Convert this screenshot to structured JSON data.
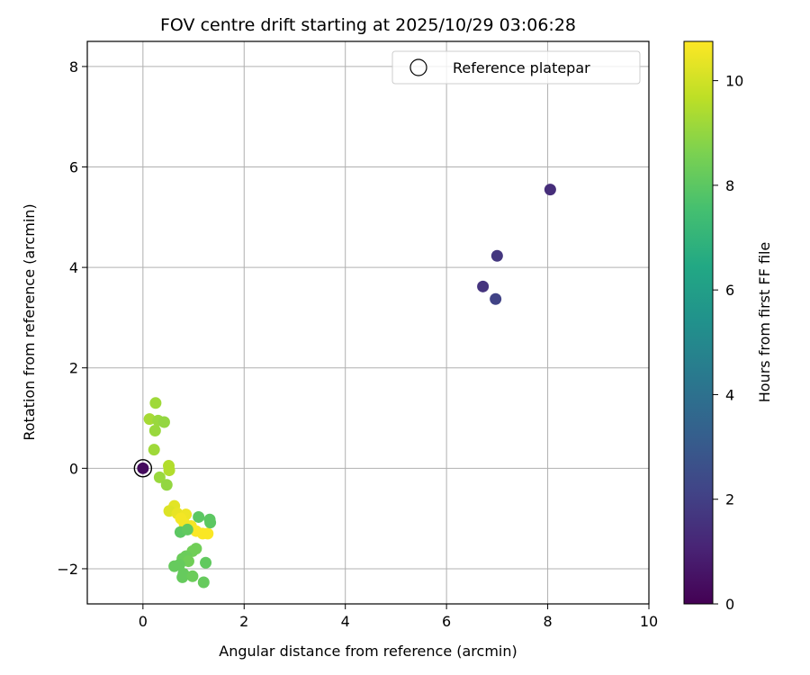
{
  "chart_data": {
    "type": "scatter",
    "title": "FOV centre drift starting at 2025/10/29 03:06:28",
    "xlabel": "Angular distance from reference (arcmin)",
    "ylabel": "Rotation from reference (arcmin)",
    "xlim": [
      -1.1,
      10
    ],
    "ylim": [
      -2.7,
      8.5
    ],
    "xticks": [
      0,
      2,
      4,
      6,
      8,
      10
    ],
    "yticks": [
      -2,
      0,
      2,
      4,
      6,
      8
    ],
    "xtick_labels": [
      "0",
      "2",
      "4",
      "6",
      "8",
      "10"
    ],
    "ytick_labels": [
      "−2",
      "0",
      "2",
      "4",
      "6",
      "8"
    ],
    "grid": true,
    "colorbar": {
      "label": "Hours from first FF file",
      "colormap": "viridis",
      "range": [
        0,
        10.75
      ],
      "ticks": [
        0,
        2,
        4,
        6,
        8,
        10
      ],
      "tick_labels": [
        "0",
        "2",
        "4",
        "6",
        "8",
        "10"
      ]
    },
    "legend": {
      "label": "Reference platepar",
      "placement": "top-right"
    },
    "reference_point": {
      "x": 0,
      "y": 0
    },
    "points": [
      {
        "x": 0.0,
        "y": 0.0,
        "c": 0.3
      },
      {
        "x": 8.05,
        "y": 5.55,
        "c": 1.4
      },
      {
        "x": 7.0,
        "y": 4.23,
        "c": 1.7
      },
      {
        "x": 6.72,
        "y": 3.62,
        "c": 1.6
      },
      {
        "x": 6.97,
        "y": 3.37,
        "c": 2.1
      },
      {
        "x": 0.25,
        "y": 1.3,
        "c": 9.2
      },
      {
        "x": 0.13,
        "y": 0.98,
        "c": 9.3
      },
      {
        "x": 0.3,
        "y": 0.95,
        "c": 9.1
      },
      {
        "x": 0.42,
        "y": 0.92,
        "c": 9.0
      },
      {
        "x": 0.24,
        "y": 0.75,
        "c": 9.1
      },
      {
        "x": 0.22,
        "y": 0.37,
        "c": 9.2
      },
      {
        "x": 0.51,
        "y": 0.05,
        "c": 9.5
      },
      {
        "x": 0.52,
        "y": -0.04,
        "c": 9.5
      },
      {
        "x": 0.33,
        "y": -0.18,
        "c": 9.1
      },
      {
        "x": 0.47,
        "y": -0.33,
        "c": 9.0
      },
      {
        "x": 0.62,
        "y": -0.75,
        "c": 10.3
      },
      {
        "x": 0.52,
        "y": -0.85,
        "c": 10.2
      },
      {
        "x": 0.68,
        "y": -0.9,
        "c": 10.4
      },
      {
        "x": 0.85,
        "y": -0.92,
        "c": 10.5
      },
      {
        "x": 0.75,
        "y": -1.0,
        "c": 10.6
      },
      {
        "x": 0.82,
        "y": -1.1,
        "c": 10.6
      },
      {
        "x": 0.95,
        "y": -1.15,
        "c": 10.6
      },
      {
        "x": 1.05,
        "y": -1.25,
        "c": 10.7
      },
      {
        "x": 1.18,
        "y": -1.3,
        "c": 10.7
      },
      {
        "x": 1.28,
        "y": -1.3,
        "c": 10.7
      },
      {
        "x": 1.1,
        "y": -0.97,
        "c": 8.0
      },
      {
        "x": 1.32,
        "y": -1.02,
        "c": 8.0
      },
      {
        "x": 1.33,
        "y": -1.08,
        "c": 8.0
      },
      {
        "x": 0.74,
        "y": -1.27,
        "c": 8.0
      },
      {
        "x": 0.88,
        "y": -1.22,
        "c": 8.1
      },
      {
        "x": 1.05,
        "y": -1.6,
        "c": 8.4
      },
      {
        "x": 0.98,
        "y": -1.65,
        "c": 8.4
      },
      {
        "x": 0.85,
        "y": -1.75,
        "c": 8.3
      },
      {
        "x": 0.78,
        "y": -1.8,
        "c": 8.3
      },
      {
        "x": 0.9,
        "y": -1.85,
        "c": 8.4
      },
      {
        "x": 0.62,
        "y": -1.95,
        "c": 8.2
      },
      {
        "x": 0.72,
        "y": -1.92,
        "c": 8.2
      },
      {
        "x": 1.24,
        "y": -1.88,
        "c": 8.1
      },
      {
        "x": 0.8,
        "y": -2.1,
        "c": 8.2
      },
      {
        "x": 0.78,
        "y": -2.17,
        "c": 8.2
      },
      {
        "x": 0.98,
        "y": -2.15,
        "c": 8.3
      },
      {
        "x": 1.2,
        "y": -2.27,
        "c": 8.2
      }
    ]
  }
}
